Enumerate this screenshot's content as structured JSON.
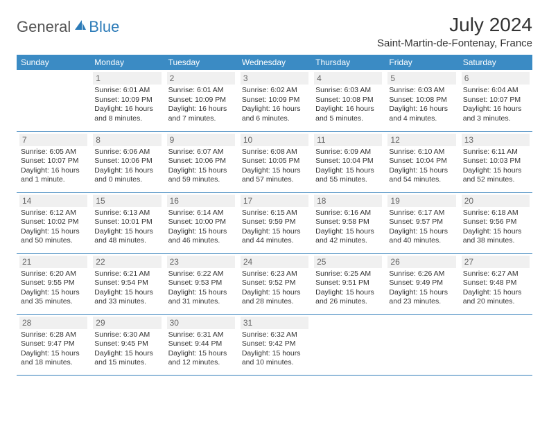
{
  "logo": {
    "part1": "General",
    "part2": "Blue"
  },
  "title": "July 2024",
  "location": "Saint-Martin-de-Fontenay, France",
  "headers": [
    "Sunday",
    "Monday",
    "Tuesday",
    "Wednesday",
    "Thursday",
    "Friday",
    "Saturday"
  ],
  "colors": {
    "header_bg": "#3b8bc4",
    "header_fg": "#ffffff",
    "border": "#2c7bb8",
    "daynum_bg": "#f0f0f0",
    "daynum_fg": "#666666",
    "text": "#333333",
    "logo_gray": "#555555",
    "logo_blue": "#2c7bb8"
  },
  "start_offset": 1,
  "days": [
    {
      "n": 1,
      "sr": "6:01 AM",
      "ss": "10:09 PM",
      "dl": "16 hours and 8 minutes."
    },
    {
      "n": 2,
      "sr": "6:01 AM",
      "ss": "10:09 PM",
      "dl": "16 hours and 7 minutes."
    },
    {
      "n": 3,
      "sr": "6:02 AM",
      "ss": "10:09 PM",
      "dl": "16 hours and 6 minutes."
    },
    {
      "n": 4,
      "sr": "6:03 AM",
      "ss": "10:08 PM",
      "dl": "16 hours and 5 minutes."
    },
    {
      "n": 5,
      "sr": "6:03 AM",
      "ss": "10:08 PM",
      "dl": "16 hours and 4 minutes."
    },
    {
      "n": 6,
      "sr": "6:04 AM",
      "ss": "10:07 PM",
      "dl": "16 hours and 3 minutes."
    },
    {
      "n": 7,
      "sr": "6:05 AM",
      "ss": "10:07 PM",
      "dl": "16 hours and 1 minute."
    },
    {
      "n": 8,
      "sr": "6:06 AM",
      "ss": "10:06 PM",
      "dl": "16 hours and 0 minutes."
    },
    {
      "n": 9,
      "sr": "6:07 AM",
      "ss": "10:06 PM",
      "dl": "15 hours and 59 minutes."
    },
    {
      "n": 10,
      "sr": "6:08 AM",
      "ss": "10:05 PM",
      "dl": "15 hours and 57 minutes."
    },
    {
      "n": 11,
      "sr": "6:09 AM",
      "ss": "10:04 PM",
      "dl": "15 hours and 55 minutes."
    },
    {
      "n": 12,
      "sr": "6:10 AM",
      "ss": "10:04 PM",
      "dl": "15 hours and 54 minutes."
    },
    {
      "n": 13,
      "sr": "6:11 AM",
      "ss": "10:03 PM",
      "dl": "15 hours and 52 minutes."
    },
    {
      "n": 14,
      "sr": "6:12 AM",
      "ss": "10:02 PM",
      "dl": "15 hours and 50 minutes."
    },
    {
      "n": 15,
      "sr": "6:13 AM",
      "ss": "10:01 PM",
      "dl": "15 hours and 48 minutes."
    },
    {
      "n": 16,
      "sr": "6:14 AM",
      "ss": "10:00 PM",
      "dl": "15 hours and 46 minutes."
    },
    {
      "n": 17,
      "sr": "6:15 AM",
      "ss": "9:59 PM",
      "dl": "15 hours and 44 minutes."
    },
    {
      "n": 18,
      "sr": "6:16 AM",
      "ss": "9:58 PM",
      "dl": "15 hours and 42 minutes."
    },
    {
      "n": 19,
      "sr": "6:17 AM",
      "ss": "9:57 PM",
      "dl": "15 hours and 40 minutes."
    },
    {
      "n": 20,
      "sr": "6:18 AM",
      "ss": "9:56 PM",
      "dl": "15 hours and 38 minutes."
    },
    {
      "n": 21,
      "sr": "6:20 AM",
      "ss": "9:55 PM",
      "dl": "15 hours and 35 minutes."
    },
    {
      "n": 22,
      "sr": "6:21 AM",
      "ss": "9:54 PM",
      "dl": "15 hours and 33 minutes."
    },
    {
      "n": 23,
      "sr": "6:22 AM",
      "ss": "9:53 PM",
      "dl": "15 hours and 31 minutes."
    },
    {
      "n": 24,
      "sr": "6:23 AM",
      "ss": "9:52 PM",
      "dl": "15 hours and 28 minutes."
    },
    {
      "n": 25,
      "sr": "6:25 AM",
      "ss": "9:51 PM",
      "dl": "15 hours and 26 minutes."
    },
    {
      "n": 26,
      "sr": "6:26 AM",
      "ss": "9:49 PM",
      "dl": "15 hours and 23 minutes."
    },
    {
      "n": 27,
      "sr": "6:27 AM",
      "ss": "9:48 PM",
      "dl": "15 hours and 20 minutes."
    },
    {
      "n": 28,
      "sr": "6:28 AM",
      "ss": "9:47 PM",
      "dl": "15 hours and 18 minutes."
    },
    {
      "n": 29,
      "sr": "6:30 AM",
      "ss": "9:45 PM",
      "dl": "15 hours and 15 minutes."
    },
    {
      "n": 30,
      "sr": "6:31 AM",
      "ss": "9:44 PM",
      "dl": "15 hours and 12 minutes."
    },
    {
      "n": 31,
      "sr": "6:32 AM",
      "ss": "9:42 PM",
      "dl": "15 hours and 10 minutes."
    }
  ],
  "labels": {
    "sunrise": "Sunrise:",
    "sunset": "Sunset:",
    "daylight": "Daylight:"
  }
}
